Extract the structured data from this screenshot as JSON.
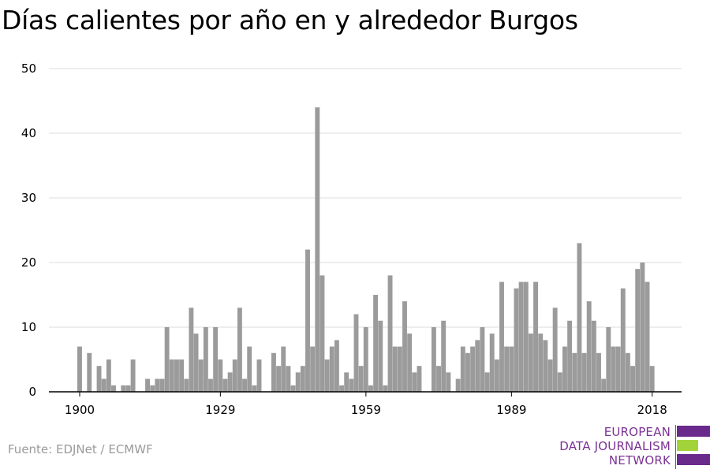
{
  "title": "Días calientes por año en y alrededor Burgos",
  "source": "Fuente: EDJNet / ECMWF",
  "logo": {
    "lines": [
      "EUROPEAN",
      "DATA JOURNALISM",
      "NETWORK"
    ],
    "colors": {
      "purple": "#6a2a8c",
      "green": "#a3d33a",
      "text": "#7b3294"
    }
  },
  "colors": {
    "bar": "#9b9b9b",
    "grid": "#dddddd",
    "axis": "#000000"
  },
  "chart_data": {
    "type": "bar",
    "title": "Días calientes por año en y alrededor Burgos",
    "xlabel": "",
    "ylabel": "",
    "ylim": [
      0,
      50
    ],
    "yticks": [
      0,
      10,
      20,
      30,
      40,
      50
    ],
    "xticks": [
      1900,
      1929,
      1959,
      1989,
      2018
    ],
    "grid": true,
    "x": [
      1900,
      1901,
      1902,
      1903,
      1904,
      1905,
      1906,
      1907,
      1908,
      1909,
      1910,
      1911,
      1912,
      1913,
      1914,
      1915,
      1916,
      1917,
      1918,
      1919,
      1920,
      1921,
      1922,
      1923,
      1924,
      1925,
      1926,
      1927,
      1928,
      1929,
      1930,
      1931,
      1932,
      1933,
      1934,
      1935,
      1936,
      1937,
      1938,
      1939,
      1940,
      1941,
      1942,
      1943,
      1944,
      1945,
      1946,
      1947,
      1948,
      1949,
      1950,
      1951,
      1952,
      1953,
      1954,
      1955,
      1956,
      1957,
      1958,
      1959,
      1960,
      1961,
      1962,
      1963,
      1964,
      1965,
      1966,
      1967,
      1968,
      1969,
      1970,
      1971,
      1972,
      1973,
      1974,
      1975,
      1976,
      1977,
      1978,
      1979,
      1980,
      1981,
      1982,
      1983,
      1984,
      1985,
      1986,
      1987,
      1988,
      1989,
      1990,
      1991,
      1992,
      1993,
      1994,
      1995,
      1996,
      1997,
      1998,
      1999,
      2000,
      2001,
      2002,
      2003,
      2004,
      2005,
      2006,
      2007,
      2008,
      2009,
      2010,
      2011,
      2012,
      2013,
      2014,
      2015,
      2016,
      2017,
      2018
    ],
    "values": [
      7,
      0,
      6,
      0,
      4,
      2,
      5,
      1,
      0,
      1,
      1,
      5,
      0,
      0,
      2,
      1,
      2,
      2,
      10,
      5,
      5,
      5,
      2,
      13,
      9,
      5,
      10,
      2,
      10,
      5,
      2,
      3,
      5,
      13,
      2,
      7,
      1,
      5,
      0,
      0,
      6,
      4,
      7,
      4,
      1,
      3,
      4,
      22,
      7,
      44,
      18,
      5,
      7,
      8,
      1,
      3,
      2,
      12,
      4,
      10,
      1,
      15,
      11,
      1,
      18,
      7,
      7,
      14,
      9,
      3,
      4,
      0,
      0,
      10,
      4,
      11,
      3,
      0,
      2,
      7,
      6,
      7,
      8,
      10,
      3,
      9,
      5,
      17,
      7,
      7,
      16,
      17,
      17,
      9,
      17,
      9,
      8,
      5,
      13,
      3,
      7,
      11,
      6,
      23,
      6,
      14,
      11,
      6,
      2,
      10,
      7,
      7,
      16,
      6,
      4,
      19,
      20,
      17,
      4
    ]
  }
}
